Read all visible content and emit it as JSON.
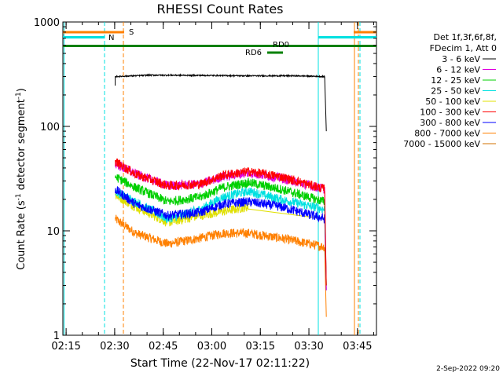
{
  "chart_data": {
    "type": "line",
    "title": "RHESSI Count Rates",
    "xlabel": "Start Time (22-Nov-17 02:11:22)",
    "ylabel_main": "Count Rate (s",
    "ylabel_sup1": "-1",
    "ylabel_mid": " detector segment",
    "ylabel_sup2": "-1",
    "ylabel_end": ")",
    "y_scale": "log",
    "ylim": [
      1,
      1000
    ],
    "xlim_minutes": [
      2.63,
      99.5
    ],
    "x_ticks": [
      {
        "label": "02:15",
        "minutes": 3.63
      },
      {
        "label": "02:30",
        "minutes": 18.63
      },
      {
        "label": "02:45",
        "minutes": 33.63
      },
      {
        "label": "03:00",
        "minutes": 48.63
      },
      {
        "label": "03:15",
        "minutes": 63.63
      },
      {
        "label": "03:30",
        "minutes": 78.63
      },
      {
        "label": "03:45",
        "minutes": 93.63
      }
    ],
    "y_ticks": [
      {
        "label": "1",
        "value": 1
      },
      {
        "label": "10",
        "value": 10
      },
      {
        "label": "100",
        "value": 100
      },
      {
        "label": "1000",
        "value": 1000
      }
    ],
    "legend": {
      "header": [
        "Det 1f,3f,6f,8f,",
        "FDecim 1, Att 0"
      ],
      "placement": "top-right outside"
    },
    "series": [
      {
        "name": "3 - 6 keV",
        "color": "#000000",
        "x": [
          18.8,
          30,
          45,
          60,
          75,
          83.6,
          84.0
        ],
        "y": [
          300,
          310,
          308,
          305,
          305,
          300,
          90
        ]
      },
      {
        "name": "6 - 12 keV",
        "color": "#e000e0",
        "x": [
          18.8,
          25,
          35,
          45,
          52,
          60,
          70,
          83.6,
          84.0
        ],
        "y": [
          44,
          35,
          27,
          28,
          33,
          36,
          32,
          25,
          2.7
        ]
      },
      {
        "name": "12 - 25 keV",
        "color": "#00d000",
        "x": [
          18.8,
          25,
          35,
          45,
          52,
          60,
          70,
          83.6,
          84.0
        ],
        "y": [
          33,
          26,
          19,
          21,
          26,
          29,
          25,
          19,
          3
        ]
      },
      {
        "name": "25 - 50 keV",
        "color": "#00e0e0",
        "x": [
          18.8,
          25,
          35,
          45,
          52,
          60,
          70,
          83.6,
          84.0
        ],
        "y": [
          24,
          19,
          13,
          16,
          21,
          24,
          20,
          16,
          3
        ]
      },
      {
        "name": "50 - 100 keV",
        "color": "#e0e000",
        "x": [
          18.8,
          25,
          35,
          45,
          60,
          83.6
        ],
        "y": [
          22,
          17,
          12,
          14,
          17,
          13
        ]
      },
      {
        "name": "100 - 300 keV",
        "color": "#ff0000",
        "x": [
          18.8,
          25,
          35,
          45,
          52,
          60,
          70,
          83.6,
          84.0
        ],
        "y": [
          46,
          35,
          27,
          28,
          34,
          37,
          33,
          25,
          3
        ]
      },
      {
        "name": "300 - 800 keV",
        "color": "#0000ff",
        "x": [
          18.8,
          25,
          35,
          45,
          52,
          60,
          70,
          83.6,
          84.0
        ],
        "y": [
          25,
          18,
          14,
          15,
          18,
          19,
          17,
          13,
          2.7
        ]
      },
      {
        "name": "800 - 7000 keV",
        "color": "#ff8000",
        "x": [
          18.8,
          25,
          35,
          45,
          52,
          60,
          70,
          83.6,
          84.0
        ],
        "y": [
          13,
          9.5,
          7.5,
          8.5,
          9.5,
          9.5,
          8.5,
          7,
          1.5
        ]
      },
      {
        "name": "7000 - 15000 keV",
        "color": "#d07000",
        "x": [],
        "y": []
      }
    ],
    "annotations": [
      {
        "label": "S",
        "color": "#ff8000"
      },
      {
        "label": "N",
        "color": "#00e0e0"
      },
      {
        "label": "RD0",
        "color": "#008000"
      },
      {
        "label": "RD6",
        "color": "#008000"
      }
    ],
    "footer_timestamp": "2-Sep-2022 09:20"
  }
}
